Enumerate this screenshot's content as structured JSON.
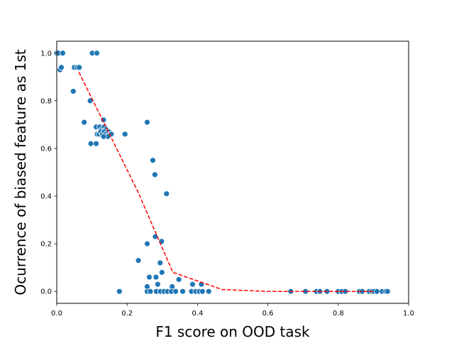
{
  "chart_data": {
    "type": "scatter",
    "xlabel": "F1 score on OOD task",
    "ylabel": "Ocurrence of biased feature as 1st",
    "xlim": [
      0.0,
      1.0
    ],
    "ylim": [
      -0.05,
      1.05
    ],
    "xticks": [
      "0.0",
      "0.2",
      "0.4",
      "0.6",
      "0.8",
      "1.0"
    ],
    "yticks": [
      "0.0",
      "0.2",
      "0.4",
      "0.6",
      "0.8",
      "1.0"
    ],
    "grid": false,
    "point_color": "#1f77b4",
    "trend_color": "#ff0000",
    "points": [
      [
        0.0,
        1.0
      ],
      [
        0.005,
        1.0
      ],
      [
        0.017,
        1.0
      ],
      [
        0.009,
        0.93
      ],
      [
        0.013,
        0.94
      ],
      [
        0.05,
        0.94
      ],
      [
        0.058,
        0.94
      ],
      [
        0.064,
        0.94
      ],
      [
        0.101,
        1.0
      ],
      [
        0.114,
        1.0
      ],
      [
        0.047,
        0.84
      ],
      [
        0.095,
        0.8
      ],
      [
        0.078,
        0.71
      ],
      [
        0.133,
        0.72
      ],
      [
        0.112,
        0.69
      ],
      [
        0.122,
        0.69
      ],
      [
        0.128,
        0.68
      ],
      [
        0.135,
        0.69
      ],
      [
        0.14,
        0.68
      ],
      [
        0.115,
        0.66
      ],
      [
        0.12,
        0.66
      ],
      [
        0.125,
        0.67
      ],
      [
        0.13,
        0.66
      ],
      [
        0.135,
        0.67
      ],
      [
        0.14,
        0.66
      ],
      [
        0.145,
        0.65
      ],
      [
        0.148,
        0.67
      ],
      [
        0.152,
        0.66
      ],
      [
        0.155,
        0.66
      ],
      [
        0.145,
        0.65
      ],
      [
        0.133,
        0.65
      ],
      [
        0.097,
        0.62
      ],
      [
        0.112,
        0.62
      ],
      [
        0.194,
        0.66
      ],
      [
        0.257,
        0.71
      ],
      [
        0.273,
        0.55
      ],
      [
        0.279,
        0.49
      ],
      [
        0.312,
        0.41
      ],
      [
        0.28,
        0.23
      ],
      [
        0.257,
        0.2
      ],
      [
        0.298,
        0.21
      ],
      [
        0.232,
        0.13
      ],
      [
        0.294,
        0.12
      ],
      [
        0.299,
        0.08
      ],
      [
        0.263,
        0.06
      ],
      [
        0.282,
        0.06
      ],
      [
        0.287,
        0.03
      ],
      [
        0.257,
        0.02
      ],
      [
        0.328,
        0.02
      ],
      [
        0.347,
        0.05
      ],
      [
        0.386,
        0.03
      ],
      [
        0.411,
        0.03
      ],
      [
        0.178,
        0.0
      ],
      [
        0.257,
        0.0
      ],
      [
        0.266,
        0.0
      ],
      [
        0.283,
        0.0
      ],
      [
        0.295,
        0.0
      ],
      [
        0.305,
        0.0
      ],
      [
        0.315,
        0.0
      ],
      [
        0.326,
        0.0
      ],
      [
        0.338,
        0.0
      ],
      [
        0.358,
        0.0
      ],
      [
        0.383,
        0.0
      ],
      [
        0.395,
        0.0
      ],
      [
        0.405,
        0.0
      ],
      [
        0.414,
        0.0
      ],
      [
        0.432,
        0.0
      ],
      [
        0.665,
        0.0
      ],
      [
        0.707,
        0.0
      ],
      [
        0.738,
        0.0
      ],
      [
        0.748,
        0.0
      ],
      [
        0.768,
        0.0
      ],
      [
        0.8,
        0.0
      ],
      [
        0.81,
        0.0
      ],
      [
        0.82,
        0.0
      ],
      [
        0.86,
        0.0
      ],
      [
        0.868,
        0.0
      ],
      [
        0.888,
        0.0
      ],
      [
        0.896,
        0.0
      ],
      [
        0.902,
        0.0
      ],
      [
        0.91,
        0.0
      ],
      [
        0.925,
        0.0
      ],
      [
        0.935,
        0.0
      ],
      [
        0.94,
        0.0
      ]
    ],
    "trend_line": [
      [
        0.063,
        0.92
      ],
      [
        0.15,
        0.66
      ],
      [
        0.23,
        0.42
      ],
      [
        0.33,
        0.08
      ],
      [
        0.47,
        0.008
      ],
      [
        0.6,
        0.0
      ],
      [
        0.75,
        0.0
      ],
      [
        0.9,
        0.0
      ]
    ]
  }
}
